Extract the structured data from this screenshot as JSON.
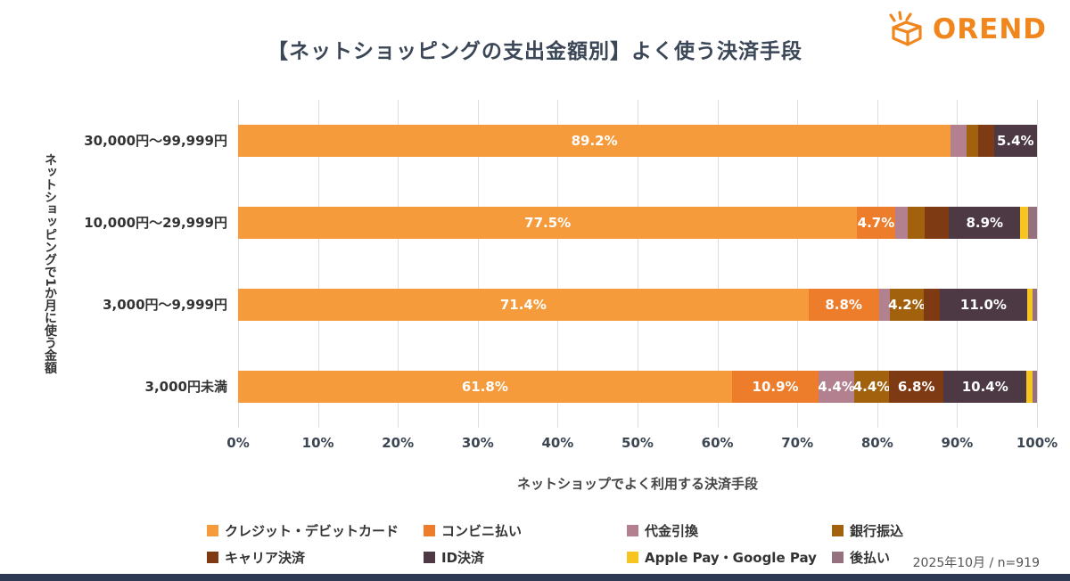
{
  "header": {
    "logo_text": "OREND"
  },
  "footnote": "2025年10月 / n=919",
  "colors": {
    "accent": "#F0861C",
    "footer_bar": "#2E3A54",
    "title_text": "#3B4757"
  },
  "chart_data": {
    "type": "bar",
    "orientation": "horizontal",
    "stacked": true,
    "title": "【ネットショッピングの支出金額別】よく使う決済手段",
    "xlabel": "ネットショップでよく利用する決済手段",
    "ylabel": "ネットショッピングで1か月に使う金額",
    "xlim": [
      0,
      100
    ],
    "grid": true,
    "legend_position": "bottom",
    "xticks": [
      "0%",
      "10%",
      "20%",
      "30%",
      "40%",
      "50%",
      "60%",
      "70%",
      "80%",
      "90%",
      "100%"
    ],
    "categories": [
      "30,000円〜99,999円",
      "10,000円〜29,999円",
      "3,000円〜9,999円",
      "3,000円未満"
    ],
    "series": [
      {
        "name": "クレジット・デビットカード",
        "color": "#F59B3B",
        "values": [
          89.2,
          77.5,
          71.4,
          61.8
        ],
        "labels": [
          "89.2%",
          "77.5%",
          "71.4%",
          "61.8%"
        ]
      },
      {
        "name": "コンビニ払い",
        "color": "#ED7D2B",
        "values": [
          0,
          4.7,
          8.8,
          10.9
        ],
        "labels": [
          "",
          "4.7%",
          "8.8%",
          "10.9%"
        ]
      },
      {
        "name": "代金引換",
        "color": "#B2808F",
        "values": [
          2.0,
          1.6,
          1.4,
          4.4
        ],
        "labels": [
          "",
          "",
          "",
          "4.4%"
        ]
      },
      {
        "name": "銀行振込",
        "color": "#A2620D",
        "values": [
          1.4,
          2.1,
          4.2,
          4.4
        ],
        "labels": [
          "",
          "",
          "4.2%",
          "4.4%"
        ]
      },
      {
        "name": "キャリア決済",
        "color": "#7E3A12",
        "values": [
          2.0,
          3.1,
          2.0,
          6.8
        ],
        "labels": [
          "",
          "",
          "",
          "6.8%"
        ]
      },
      {
        "name": "ID決済",
        "color": "#4C3944",
        "values": [
          5.4,
          8.9,
          11.0,
          10.4
        ],
        "labels": [
          "5.4%",
          "8.9%",
          "11.0%",
          "10.4%"
        ]
      },
      {
        "name": "Apple Pay・Google Pay",
        "color": "#F6C51F",
        "values": [
          0,
          1.0,
          0.6,
          0.7
        ],
        "labels": [
          "",
          "",
          "",
          ""
        ]
      },
      {
        "name": "後払い",
        "color": "#95707F",
        "values": [
          0,
          1.1,
          0.6,
          0.6
        ],
        "labels": [
          "",
          "",
          "",
          ""
        ]
      }
    ]
  }
}
